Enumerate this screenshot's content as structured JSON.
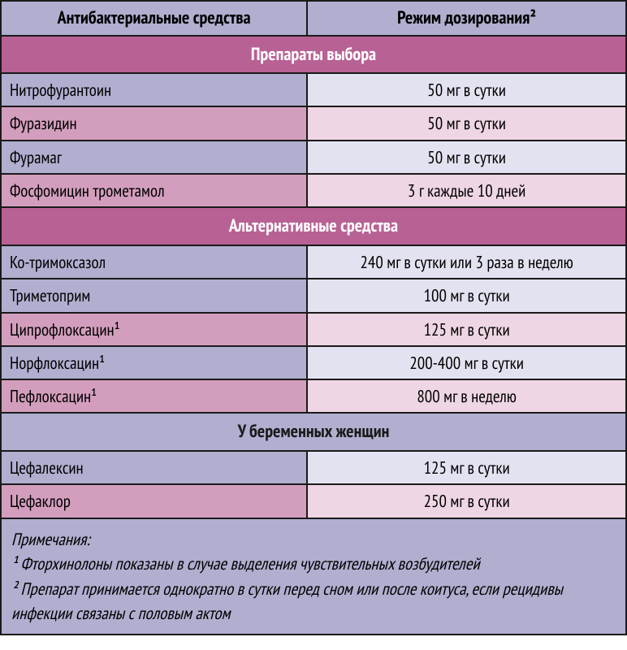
{
  "colors": {
    "border": "#1a1a1a",
    "lavender_header": "#b0afd0",
    "lavender_light": "#e3e2f0",
    "pink_section": "#b86194",
    "pink_med": "#d39ebd",
    "pink_light": "#efd6e4"
  },
  "header": {
    "col_name": "Антибактериальные средства",
    "col_dose": "Режим дозирования²"
  },
  "sections": [
    {
      "title": "Препараты выбора",
      "style": "pink",
      "rows": [
        {
          "name": "Нитрофурантоин",
          "dose": "50 мг в сутки",
          "shade": "lav"
        },
        {
          "name": "Фуразидин",
          "dose": "50 мг в сутки",
          "shade": "pink"
        },
        {
          "name": "Фурамаг",
          "dose": "50 мг в сутки",
          "shade": "lav"
        },
        {
          "name": "Фосфомицин трометамол",
          "dose": "3 г каждые 10 дней",
          "shade": "pink"
        }
      ]
    },
    {
      "title": "Альтернативные средства",
      "style": "pink",
      "rows": [
        {
          "name": "Ко-тримоксазол",
          "dose": "240 мг в сутки или 3 раза в неделю",
          "shade": "lav"
        },
        {
          "name": "Триметоприм",
          "dose": "100 мг в сутки",
          "shade": "lav"
        },
        {
          "name": "Ципрофлоксацин¹",
          "dose": "125 мг в сутки",
          "shade": "pink"
        },
        {
          "name": "Норфлоксацин¹",
          "dose": "200-400 мг в сутки",
          "shade": "lav"
        },
        {
          "name": "Пефлоксацин¹",
          "dose": "800 мг в неделю",
          "shade": "pink"
        }
      ]
    },
    {
      "title": "У беременных женщин",
      "style": "lavender",
      "rows": [
        {
          "name": "Цефалексин",
          "dose": "125 мг в сутки",
          "shade": "lav"
        },
        {
          "name": "Цефаклор",
          "dose": "250 мг в сутки",
          "shade": "pink"
        }
      ]
    }
  ],
  "notes": {
    "heading": "Примечания:",
    "line1": "¹ Фторхинолоны показаны в случае выделения чувствительных возбудителей",
    "line2": "² Препарат принимается однократно в сутки перед сном или после коитуса, если рецидивы инфекции связаны с половым актом"
  }
}
